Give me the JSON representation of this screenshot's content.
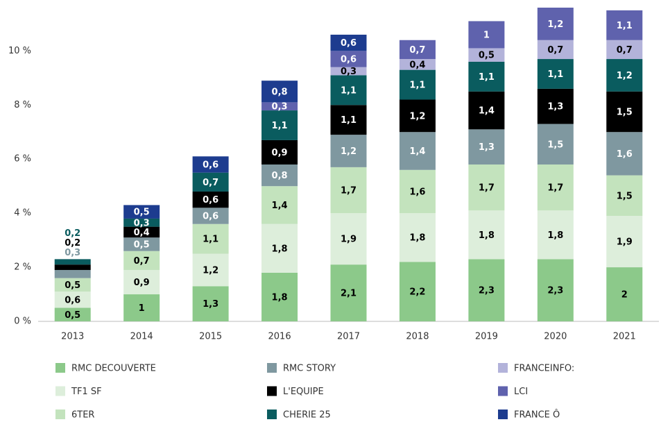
{
  "chart_data": {
    "type": "stacked_bar",
    "categories": [
      "2013",
      "2014",
      "2015",
      "2016",
      "2017",
      "2018",
      "2019",
      "2020",
      "2021"
    ],
    "series": [
      {
        "name": "RMC DECOUVERTE",
        "color": "#8cc98a",
        "values": [
          0.5,
          1,
          1.3,
          1.8,
          2.1,
          2.2,
          2.3,
          2.3,
          2
        ],
        "value_labels": [
          "0,5",
          "1",
          "1,3",
          "1,8",
          "2,1",
          "2,2",
          "2,3",
          "2,3",
          "2"
        ]
      },
      {
        "name": "TF1 SF",
        "color": "#ddeedb",
        "values": [
          0.6,
          0.9,
          1.2,
          1.8,
          1.9,
          1.8,
          1.8,
          1.8,
          1.9
        ],
        "value_labels": [
          "0,6",
          "0,9",
          "1,2",
          "1,8",
          "1,9",
          "1,8",
          "1,8",
          "1,8",
          "1,9"
        ]
      },
      {
        "name": "6TER",
        "color": "#c3e3bd",
        "values": [
          0.5,
          0.7,
          1.1,
          1.4,
          1.7,
          1.6,
          1.7,
          1.7,
          1.5
        ],
        "value_labels": [
          "0,5",
          "0,7",
          "1,1",
          "1,4",
          "1,7",
          "1,6",
          "1,7",
          "1,7",
          "1,5"
        ]
      },
      {
        "name": "RMC STORY",
        "color": "#7f98a0",
        "values": [
          0.3,
          0.5,
          0.6,
          0.8,
          1.2,
          1.4,
          1.3,
          1.5,
          1.6
        ],
        "value_labels": [
          "0,3",
          "0,5",
          "0,6",
          "0,8",
          "1,2",
          "1,4",
          "1,3",
          "1,5",
          "1,6"
        ]
      },
      {
        "name": "L'EQUIPE",
        "color": "#000000",
        "values": [
          0.2,
          0.4,
          0.6,
          0.9,
          1.1,
          1.2,
          1.4,
          1.3,
          1.5
        ],
        "value_labels": [
          "0,2",
          "0,4",
          "0,6",
          "0,9",
          "1,1",
          "1,2",
          "1,4",
          "1,3",
          "1,5"
        ]
      },
      {
        "name": "CHERIE 25",
        "color": "#0a5c5f",
        "values": [
          0.2,
          0.3,
          0.7,
          1.1,
          1.1,
          1.1,
          1.1,
          1.1,
          1.2
        ],
        "value_labels": [
          "0,2",
          "0,3",
          "0,7",
          "1,1",
          "1,1",
          "1,1",
          "1,1",
          "1,1",
          "1,2"
        ]
      },
      {
        "name": "FRANCEINFO:",
        "color": "#b3b3da",
        "values": [
          null,
          null,
          null,
          null,
          0.3,
          0.4,
          0.5,
          0.7,
          0.7
        ],
        "value_labels": [
          null,
          null,
          null,
          null,
          "0,3",
          "0,4",
          "0,5",
          "0,7",
          "0,7"
        ]
      },
      {
        "name": "LCI",
        "color": "#5f62ad",
        "values": [
          null,
          null,
          null,
          0.3,
          0.6,
          0.7,
          1,
          1.2,
          1.1
        ],
        "value_labels": [
          null,
          null,
          null,
          "0,3",
          "0,6",
          "0,7",
          "1",
          "1,2",
          "1,1"
        ]
      },
      {
        "name": "FRANCE Ô",
        "color": "#1d3c8f",
        "values": [
          null,
          0.5,
          0.6,
          0.8,
          0.6,
          null,
          null,
          null,
          null
        ],
        "value_labels": [
          null,
          "0,5",
          "0,6",
          "0,8",
          "0,6",
          null,
          null,
          null,
          null
        ]
      }
    ],
    "ylim": [
      0,
      11.6
    ],
    "yticks": [
      {
        "value": 0,
        "label": "0 %"
      },
      {
        "value": 2,
        "label": "2 %"
      },
      {
        "value": 4,
        "label": "4 %"
      },
      {
        "value": 6,
        "label": "6 %"
      },
      {
        "value": 8,
        "label": "8 %"
      },
      {
        "value": 10,
        "label": "10 %"
      }
    ],
    "grid": false,
    "legend": "bottom"
  }
}
